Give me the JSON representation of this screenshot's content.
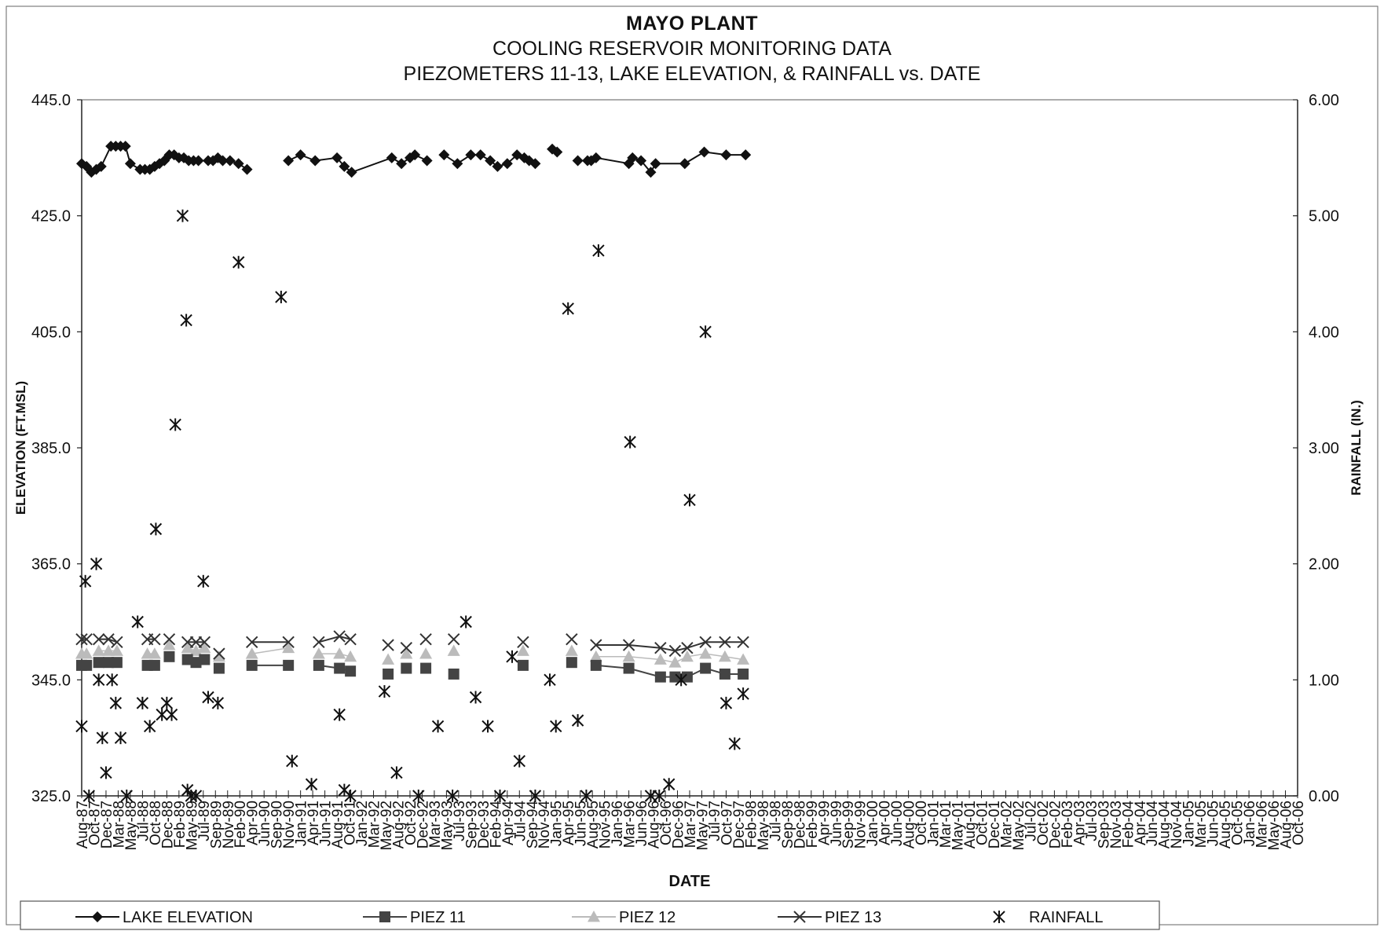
{
  "chart_data": {
    "type": "line",
    "title": "MAYO PLANT",
    "subtitle": [
      "COOLING RESERVOIR MONITORING DATA",
      "PIEZOMETERS 11-13, LAKE ELEVATION, & RAINFALL vs. DATE"
    ],
    "xlabel": "DATE",
    "ylabel": "ELEVATION (FT.MSL)",
    "y2label": "RAINFALL (IN.)",
    "ylim": [
      325.0,
      445.0
    ],
    "y2lim": [
      0.0,
      6.0
    ],
    "yticks": [
      "445.0",
      "425.0",
      "405.0",
      "385.0",
      "365.0",
      "345.0",
      "325.0"
    ],
    "y2ticks": [
      "6.00",
      "5.00",
      "4.00",
      "3.00",
      "2.00",
      "1.00",
      "0.00"
    ],
    "categories": [
      "Aug-87",
      "Oct-87",
      "Dec-87",
      "Mar-88",
      "May-88",
      "Jul-88",
      "Oct-88",
      "Dec-88",
      "Feb-89",
      "May-89",
      "Jul-89",
      "Sep-89",
      "Nov-89",
      "Feb-90",
      "Apr-90",
      "Jun-90",
      "Sep-90",
      "Nov-90",
      "Jan-91",
      "Apr-91",
      "Jun-91",
      "Aug-91",
      "Oct-91",
      "Jan-92",
      "Mar-92",
      "May-92",
      "Aug-92",
      "Oct-92",
      "Dec-92",
      "Mar-93",
      "May-93",
      "Jul-93",
      "Sep-93",
      "Dec-93",
      "Feb-94",
      "Apr-94",
      "Jul-94",
      "Sep-94",
      "Nov-94",
      "Jan-95",
      "Apr-95",
      "Jun-95",
      "Aug-95",
      "Nov-95",
      "Jan-96",
      "Mar-96",
      "Jun-96",
      "Aug-96",
      "Oct-96",
      "Dec-96",
      "Mar-97",
      "May-97",
      "Jul-97",
      "Oct-97",
      "Dec-97",
      "Feb-98",
      "May-98",
      "Jul-98",
      "Sep-98",
      "Dec-98",
      "Feb-99",
      "Apr-99",
      "Jun-99",
      "Sep-99",
      "Nov-99",
      "Jan-00",
      "Apr-00",
      "Jun-00",
      "Aug-00",
      "Oct-00",
      "Jan-01",
      "Mar-01",
      "May-01",
      "Aug-01",
      "Oct-01",
      "Dec-01",
      "Mar-02",
      "May-02",
      "Jul-02",
      "Oct-02",
      "Dec-02",
      "Feb-03",
      "Apr-03",
      "Jul-03",
      "Sep-03",
      "Nov-03",
      "Feb-04",
      "Apr-04",
      "Jun-04",
      "Aug-04",
      "Nov-04",
      "Jan-05",
      "Mar-05",
      "Jun-05",
      "Aug-05",
      "Oct-05",
      "Jan-06",
      "Mar-06",
      "May-06",
      "Aug-06",
      "Oct-06"
    ],
    "series": [
      {
        "name": "LAKE ELEVATION",
        "color": "#111111",
        "marker": "diamond",
        "segments": [
          [
            [
              0.0,
              434.0
            ],
            [
              0.4,
              433.5
            ],
            [
              0.8,
              432.5
            ],
            [
              1.2,
              433.0
            ],
            [
              1.6,
              433.5
            ],
            [
              2.4,
              437.0
            ],
            [
              2.8,
              437.0
            ],
            [
              3.2,
              437.0
            ],
            [
              3.6,
              437.0
            ],
            [
              4.0,
              434.0
            ],
            [
              4.8,
              433.0
            ],
            [
              5.2,
              433.0
            ],
            [
              5.6,
              433.0
            ],
            [
              6.0,
              433.5
            ],
            [
              6.4,
              434.0
            ],
            [
              6.8,
              434.5
            ],
            [
              7.2,
              435.5
            ],
            [
              7.6,
              435.5
            ],
            [
              8.0,
              435.0
            ],
            [
              8.4,
              435.0
            ],
            [
              8.8,
              434.5
            ],
            [
              9.2,
              434.5
            ],
            [
              9.6,
              434.5
            ],
            [
              10.4,
              434.5
            ],
            [
              10.8,
              434.5
            ],
            [
              11.2,
              435.0
            ],
            [
              11.6,
              434.5
            ],
            [
              12.2,
              434.5
            ],
            [
              12.9,
              434.0
            ],
            [
              13.6,
              433.0
            ]
          ],
          [
            [
              17.0,
              434.5
            ],
            [
              18.0,
              435.5
            ],
            [
              19.2,
              434.5
            ],
            [
              21.0,
              435.0
            ],
            [
              21.6,
              433.5
            ],
            [
              22.2,
              432.5
            ],
            [
              25.5,
              435.0
            ],
            [
              26.3,
              434.0
            ],
            [
              27.0,
              435.0
            ],
            [
              27.4,
              435.5
            ],
            [
              28.4,
              434.5
            ]
          ],
          [
            [
              29.8,
              435.5
            ],
            [
              30.9,
              434.0
            ],
            [
              32.0,
              435.5
            ],
            [
              32.8,
              435.5
            ],
            [
              33.6,
              434.5
            ],
            [
              34.2,
              433.5
            ],
            [
              35.0,
              434.0
            ],
            [
              35.8,
              435.5
            ],
            [
              36.4,
              435.0
            ],
            [
              36.8,
              434.5
            ],
            [
              37.3,
              434.0
            ]
          ],
          [
            [
              38.7,
              436.5
            ],
            [
              39.1,
              436.0
            ]
          ],
          [
            [
              40.8,
              434.5
            ],
            [
              41.6,
              434.5
            ],
            [
              41.9,
              434.5
            ],
            [
              42.3,
              435.0
            ],
            [
              45.0,
              434.0
            ],
            [
              45.3,
              435.0
            ],
            [
              46.0,
              434.5
            ],
            [
              46.8,
              432.5
            ],
            [
              47.2,
              434.0
            ],
            [
              49.6,
              434.0
            ],
            [
              51.2,
              436.0
            ],
            [
              53.0,
              435.5
            ],
            [
              54.6,
              435.5
            ]
          ]
        ]
      },
      {
        "name": "PIEZ 11",
        "color": "#444444",
        "marker": "square",
        "segments": [
          [
            [
              0.0,
              347.5
            ],
            [
              0.4,
              347.5
            ]
          ],
          [
            [
              1.4,
              348.0
            ],
            [
              2.2,
              348.0
            ],
            [
              2.9,
              348.0
            ]
          ],
          [
            [
              5.4,
              347.5
            ],
            [
              6.0,
              347.5
            ]
          ],
          [
            [
              7.2,
              349.0
            ]
          ],
          [
            [
              8.7,
              348.5
            ],
            [
              9.4,
              348.0
            ],
            [
              10.1,
              348.5
            ]
          ],
          [
            [
              11.3,
              347.0
            ]
          ],
          [
            [
              14.0,
              347.5
            ],
            [
              17.0,
              347.5
            ]
          ],
          [
            [
              19.5,
              347.5
            ],
            [
              21.2,
              347.0
            ],
            [
              22.1,
              346.5
            ]
          ],
          [
            [
              25.2,
              346.0
            ]
          ],
          [
            [
              26.7,
              347.0
            ]
          ],
          [
            [
              28.3,
              347.0
            ]
          ],
          [
            [
              30.6,
              346.0
            ]
          ],
          [
            [
              36.3,
              347.5
            ]
          ],
          [
            [
              40.3,
              348.0
            ]
          ],
          [
            [
              42.3,
              347.5
            ],
            [
              45.0,
              347.0
            ],
            [
              47.6,
              345.5
            ],
            [
              48.8,
              345.5
            ],
            [
              49.8,
              345.5
            ],
            [
              51.3,
              347.0
            ],
            [
              52.9,
              346.0
            ],
            [
              54.4,
              346.0
            ]
          ]
        ]
      },
      {
        "name": "PIEZ 12",
        "color": "#bbbbbb",
        "marker": "triangle",
        "segments": [
          [
            [
              0.0,
              349.5
            ],
            [
              0.4,
              349.5
            ]
          ],
          [
            [
              1.4,
              350.0
            ],
            [
              2.2,
              350.0
            ],
            [
              2.9,
              350.0
            ]
          ],
          [
            [
              5.4,
              349.5
            ],
            [
              6.0,
              349.5
            ]
          ],
          [
            [
              7.2,
              351.0
            ]
          ],
          [
            [
              8.7,
              350.5
            ],
            [
              9.4,
              350.0
            ],
            [
              10.1,
              350.5
            ]
          ],
          [
            [
              11.3,
              349.0
            ]
          ],
          [
            [
              14.0,
              349.5
            ],
            [
              17.0,
              350.5
            ]
          ],
          [
            [
              19.5,
              349.5
            ],
            [
              21.2,
              349.5
            ],
            [
              22.1,
              349.0
            ]
          ],
          [
            [
              25.2,
              348.5
            ]
          ],
          [
            [
              26.7,
              349.5
            ]
          ],
          [
            [
              28.3,
              349.5
            ]
          ],
          [
            [
              30.6,
              350.0
            ]
          ],
          [
            [
              36.3,
              350.0
            ]
          ],
          [
            [
              40.3,
              350.0
            ]
          ],
          [
            [
              42.3,
              349.0
            ],
            [
              45.0,
              349.0
            ],
            [
              47.6,
              348.5
            ],
            [
              48.8,
              348.0
            ],
            [
              49.8,
              349.0
            ],
            [
              51.3,
              349.5
            ],
            [
              52.9,
              349.0
            ],
            [
              54.4,
              348.5
            ]
          ]
        ]
      },
      {
        "name": "PIEZ 13",
        "color": "#333333",
        "marker": "x",
        "segments": [
          [
            [
              0.0,
              352.0
            ],
            [
              0.4,
              352.0
            ]
          ],
          [
            [
              1.4,
              352.0
            ],
            [
              2.2,
              352.0
            ],
            [
              2.9,
              351.5
            ]
          ],
          [
            [
              5.4,
              352.0
            ],
            [
              6.0,
              352.0
            ]
          ],
          [
            [
              7.2,
              352.0
            ]
          ],
          [
            [
              8.7,
              351.5
            ],
            [
              9.4,
              351.5
            ],
            [
              10.1,
              351.5
            ]
          ],
          [
            [
              11.3,
              349.5
            ]
          ],
          [
            [
              14.0,
              351.5
            ],
            [
              17.0,
              351.5
            ]
          ],
          [
            [
              19.5,
              351.5
            ],
            [
              21.2,
              352.5
            ],
            [
              22.1,
              352.0
            ]
          ],
          [
            [
              25.2,
              351.0
            ]
          ],
          [
            [
              26.7,
              350.5
            ]
          ],
          [
            [
              28.3,
              352.0
            ]
          ],
          [
            [
              30.6,
              352.0
            ]
          ],
          [
            [
              36.3,
              351.5
            ]
          ],
          [
            [
              40.3,
              352.0
            ]
          ],
          [
            [
              42.3,
              351.0
            ],
            [
              45.0,
              351.0
            ],
            [
              47.6,
              350.5
            ],
            [
              48.8,
              350.0
            ],
            [
              49.8,
              350.5
            ],
            [
              51.3,
              351.5
            ],
            [
              52.9,
              351.5
            ],
            [
              54.4,
              351.5
            ]
          ]
        ]
      },
      {
        "name": "RAINFALL",
        "color": "#111111",
        "marker": "asterisk",
        "axis": "right",
        "points": [
          [
            0.0,
            0.6
          ],
          [
            0.3,
            1.85
          ],
          [
            0.6,
            0.0
          ],
          [
            1.2,
            2.0
          ],
          [
            1.4,
            1.0
          ],
          [
            1.7,
            0.5
          ],
          [
            2.0,
            0.2
          ],
          [
            2.5,
            1.0
          ],
          [
            2.8,
            0.8
          ],
          [
            3.2,
            0.5
          ],
          [
            3.7,
            0.0
          ],
          [
            4.6,
            1.5
          ],
          [
            5.0,
            0.8
          ],
          [
            5.6,
            0.6
          ],
          [
            6.1,
            2.3
          ],
          [
            6.6,
            0.7
          ],
          [
            7.0,
            0.8
          ],
          [
            7.4,
            0.7
          ],
          [
            7.7,
            3.2
          ],
          [
            8.3,
            5.0
          ],
          [
            8.6,
            4.1
          ],
          [
            8.7,
            0.05
          ],
          [
            9.0,
            0.0
          ],
          [
            9.4,
            0.0
          ],
          [
            10.0,
            1.85
          ],
          [
            10.4,
            0.85
          ],
          [
            11.2,
            0.8
          ],
          [
            12.9,
            4.6
          ],
          [
            16.4,
            4.3
          ],
          [
            17.3,
            0.3
          ],
          [
            18.9,
            0.1
          ],
          [
            21.2,
            0.7
          ],
          [
            21.6,
            0.05
          ],
          [
            22.1,
            0.0
          ],
          [
            24.9,
            0.9
          ],
          [
            25.9,
            0.2
          ],
          [
            27.7,
            0.0
          ],
          [
            29.3,
            0.6
          ],
          [
            30.5,
            0.0
          ],
          [
            31.6,
            1.5
          ],
          [
            32.4,
            0.85
          ],
          [
            33.4,
            0.6
          ],
          [
            34.4,
            0.0
          ],
          [
            35.4,
            1.2
          ],
          [
            36.0,
            0.3
          ],
          [
            37.3,
            0.0
          ],
          [
            38.5,
            1.0
          ],
          [
            39.0,
            0.6
          ],
          [
            40.0,
            4.2
          ],
          [
            40.8,
            0.65
          ],
          [
            41.5,
            0.0
          ],
          [
            42.5,
            4.7
          ],
          [
            45.1,
            3.05
          ],
          [
            46.8,
            0.0
          ],
          [
            47.5,
            0.0
          ],
          [
            48.3,
            0.1
          ],
          [
            49.3,
            1.0
          ],
          [
            50.0,
            2.55
          ],
          [
            51.3,
            4.0
          ],
          [
            53.0,
            0.8
          ],
          [
            53.7,
            0.45
          ],
          [
            54.4,
            0.88
          ]
        ]
      }
    ],
    "legend": {
      "placement": "bottom",
      "entries": [
        "LAKE ELEVATION",
        "PIEZ 11",
        "PIEZ 12",
        "PIEZ 13",
        "RAINFALL"
      ]
    },
    "grid": false
  }
}
